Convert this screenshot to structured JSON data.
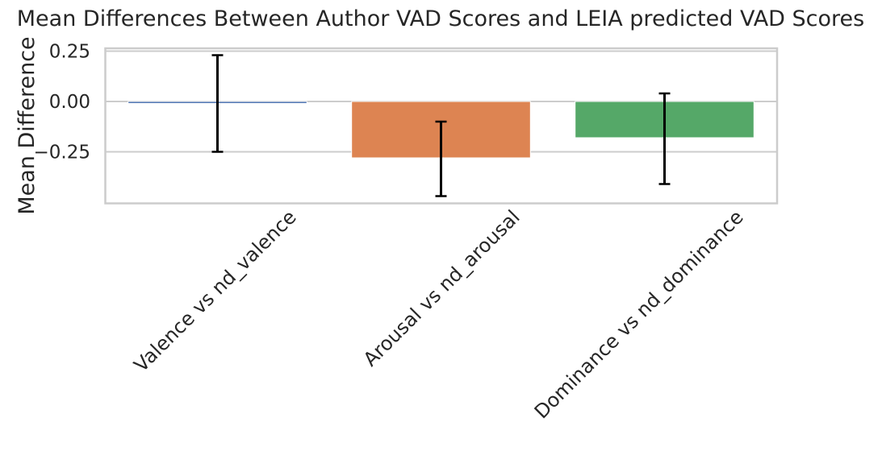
{
  "chart_data": {
    "type": "bar",
    "title": "Mean Differences Between Author VAD Scores and LEIA predicted VAD Scores",
    "xlabel": "",
    "ylabel": "Mean Difference",
    "categories": [
      "Valence vs nd_valence",
      "Arousal vs nd_arousal",
      "Dominance vs nd_dominance"
    ],
    "values": [
      -0.01,
      -0.28,
      -0.18
    ],
    "error_low": [
      -0.25,
      -0.47,
      -0.41
    ],
    "error_high": [
      0.23,
      -0.1,
      0.04
    ],
    "ylim": [
      -0.5,
      0.26
    ],
    "yticks": [
      0.25,
      0.0,
      -0.25
    ],
    "ytick_labels": [
      "0.25",
      "0.00",
      "−0.25"
    ],
    "colors": [
      "#4c72b0",
      "#dd8452",
      "#55a868"
    ],
    "error_color": "#000000",
    "grid": "horizontal"
  }
}
